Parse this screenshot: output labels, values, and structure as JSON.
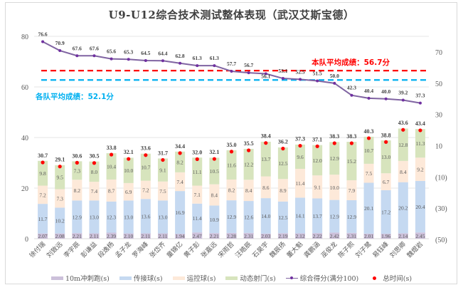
{
  "chart_data": {
    "type": "bar",
    "subtype": "stacked-bar-with-line",
    "title": "U9-U12综合技术测试整体表现（武汉艾斯宝德）",
    "categories": [
      "徐付瑞",
      "刘致远",
      "李宇辰",
      "彭谦益",
      "段逸杨",
      "孟子龙",
      "罗海峰",
      "张岱齐",
      "童锦亿",
      "黄子彭",
      "张嘉远",
      "宋雨哲",
      "汪皓辰",
      "石昊宇",
      "魏辰扬",
      "董大魁",
      "龚鹏涵",
      "巫俊龙",
      "陈子熙",
      "刘子鹭",
      "易钰峰",
      "刘思卿",
      "魏煜岩"
    ],
    "series": [
      {
        "name": "10m冲刺跑(s)",
        "type": "stacked-bar",
        "color": "#ccc0da",
        "values": [
          2.07,
          2.08,
          2.21,
          2.11,
          2.39,
          2.1,
          2.11,
          2.11,
          1.94,
          2.47,
          2.21,
          2.28,
          2.31,
          2.03,
          2.19,
          2.12,
          2.22,
          2.42,
          2.31,
          2.01,
          1.96,
          2.14,
          2.45
        ],
        "labels": [
          "2.07",
          "2.08",
          "2.21",
          "2.11",
          "2.39",
          "2.10",
          "2.11",
          "2.11",
          "1.94",
          "2.47",
          "2.21",
          "2.28",
          "2.31",
          "2.03",
          "2.19",
          "2.12",
          "2.22",
          "2.42",
          "2.31",
          "2.01",
          "1.96",
          "2.14",
          "2.45"
        ]
      },
      {
        "name": "传接球(s)",
        "type": "stacked-bar",
        "color": "#c5d9f1",
        "values": [
          11.7,
          10.2,
          12.9,
          13.0,
          12.3,
          13.0,
          13.6,
          13.0,
          16.9,
          11.4,
          10.9,
          12.9,
          12.6,
          14.0,
          12.5,
          14.1,
          13.7,
          12.9,
          12.9,
          20.1,
          17.2,
          20.2,
          20.4
        ],
        "labels": [
          "11.7",
          "10.2",
          "12.9",
          "13.0",
          "12.3",
          "13.0",
          "13.6",
          "13.0",
          "16.9",
          "11.4",
          "10.9",
          "12.9",
          "12.6",
          "14.0",
          "12.5",
          "14.1",
          "13.7",
          "12.9",
          "12.9",
          "20.1",
          "17.2",
          "20.2",
          "20.4"
        ]
      },
      {
        "name": "运控球(s)",
        "type": "stacked-bar",
        "color": "#fde9d9",
        "values": [
          7.2,
          7.3,
          8.2,
          7.4,
          8.7,
          6.9,
          7.2,
          7.5,
          7.4,
          7.1,
          8.4,
          8.2,
          8.4,
          8.6,
          8.9,
          11.4,
          9.1,
          10.0,
          7.9,
          7.5,
          6.7,
          8.4,
          9.2
        ],
        "labels": [
          "7.2",
          "7.3",
          "8.2",
          "7.4",
          "8.7",
          "6.9",
          "7.2",
          "7.5",
          "7.4",
          "7.1",
          "8.4",
          "8.2",
          "8.4",
          "8.6",
          "8.9",
          "11.4",
          "9.1",
          "10.0",
          "7.9",
          "7.5",
          "6.7",
          "8.4",
          "9.2"
        ]
      },
      {
        "name": "动态射门(s)",
        "type": "stacked-bar",
        "color": "#d7e4bd",
        "values": [
          9.8,
          9.5,
          7.3,
          8.0,
          10.4,
          10.0,
          10.7,
          9.1,
          8.2,
          11.1,
          10.5,
          11.6,
          12.2,
          13.7,
          12.5,
          9.6,
          12.0,
          12.9,
          15.2,
          10.7,
          13.0,
          12.8,
          11.3
        ],
        "labels": [
          "9.8",
          "9.5",
          "7.3",
          "8.0",
          "10.4",
          "10.0",
          "10.7",
          "9.1",
          "8.2",
          "11.1",
          "10.5",
          "11.6",
          "12.2",
          "13.7",
          "12.5",
          "9.6",
          "12.0",
          "12.9",
          "15.2",
          "10.7",
          "13.0",
          "12.8",
          "11.3"
        ]
      },
      {
        "name": "综合得分(满分100)",
        "type": "line",
        "axis": "right",
        "color": "#8064a2",
        "marker_color": "#7030a0",
        "values": [
          76.6,
          70.9,
          67.6,
          67.6,
          65.6,
          65.3,
          64.5,
          64.4,
          62.8,
          61.3,
          61.3,
          57.7,
          56.7,
          56.1,
          53.1,
          52.5,
          51.5,
          50.0,
          42.3,
          40.4,
          40.0,
          39.2,
          37.3
        ],
        "labels": [
          "76.6",
          "70.9",
          "67.6",
          "67.6",
          "65.6",
          "65.3",
          "64.5",
          "64.4",
          "62.8",
          "61.3",
          "61.3",
          "57.7",
          "56.7",
          "56.1",
          "53.1",
          "52.5",
          "51.5",
          "50.0",
          "42.3",
          "40.4",
          "40.0",
          "39.2",
          "37.3"
        ]
      },
      {
        "name": "总时间(s)",
        "type": "scatter",
        "axis": "left",
        "color": "#ff0000",
        "values": [
          30.7,
          29.1,
          30.6,
          30.5,
          33.8,
          32.1,
          33.6,
          31.7,
          34.4,
          32.0,
          32.1,
          35.0,
          35.5,
          38.4,
          36.2,
          37.3,
          37.1,
          38.3,
          38.3,
          40.3,
          38.8,
          43.6,
          43.4
        ],
        "labels": [
          "30.7",
          "29.1",
          "30.6",
          "30.5",
          "33.8",
          "32.1",
          "33.6",
          "31.7",
          "34.4",
          "32.0",
          "32.1",
          "35.0",
          "35.5",
          "38.4",
          "36.2",
          "37.3",
          "37.1",
          "38.3",
          "38.3",
          "40.3",
          "38.8",
          "43.6",
          "43.4"
        ]
      }
    ],
    "left_axis": {
      "ylim": [
        0,
        80
      ],
      "ticks": [
        "0",
        "20",
        "40",
        "60",
        "80"
      ]
    },
    "right_axis": {
      "ylim": [
        -50,
        80
      ],
      "ticks": [
        "(50)",
        "(30)",
        "(10)",
        "10",
        "30",
        "50",
        "70"
      ],
      "tick_values": [
        -50,
        -30,
        -10,
        10,
        30,
        50,
        70
      ]
    },
    "reference_lines": [
      {
        "label": "本队平均成绩：56.7分",
        "value": 56.7,
        "axis": "right",
        "color": "#ff0000",
        "style": "dashed"
      },
      {
        "label": "各队平均成绩：52.1分",
        "value": 52.1,
        "axis": "right",
        "color": "#00b0f0",
        "style": "dashed"
      }
    ],
    "grid": true,
    "legend_position": "bottom"
  }
}
